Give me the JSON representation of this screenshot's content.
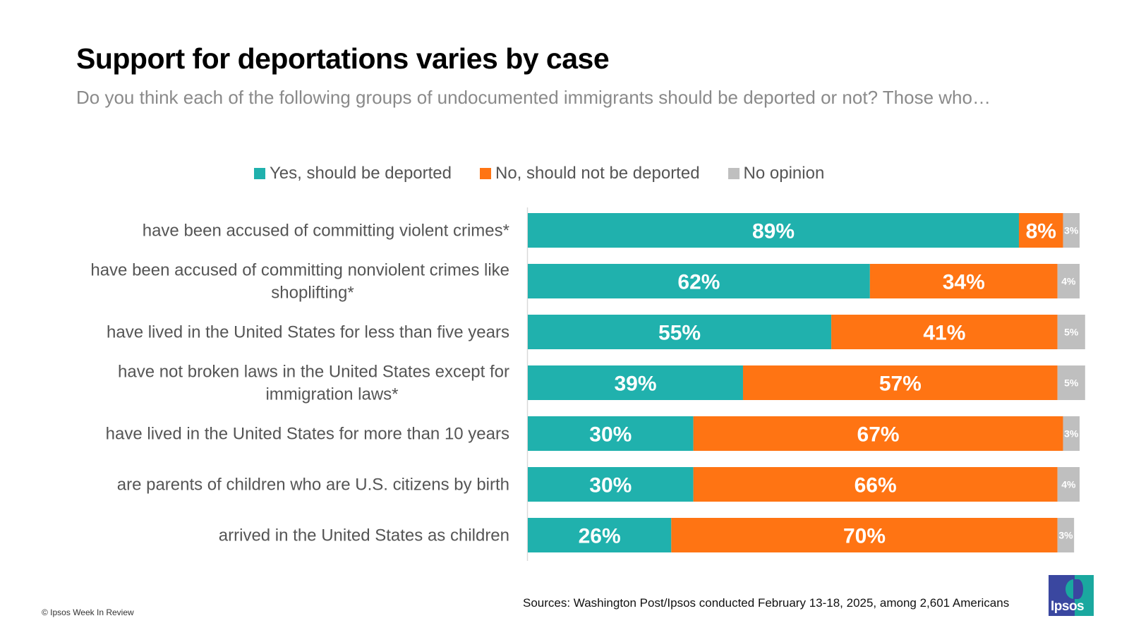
{
  "header": {
    "title": "Support for deportations varies by case",
    "subtitle": "Do you think each of the following groups of undocumented immigrants should be deported or not? Those who…"
  },
  "colors": {
    "yes": "#20b1ad",
    "no": "#ff7413",
    "no_opinion": "#bfbfbf",
    "axis": "#d9d9d9",
    "label_text": "#555555",
    "value_text": "#ffffff"
  },
  "chart_data": {
    "type": "bar",
    "orientation": "horizontal",
    "stacked": true,
    "title": "Support for deportations varies by case",
    "subtitle": "Do you think each of the following groups of undocumented immigrants should be deported or not? Those who…",
    "xlabel": "",
    "ylabel": "",
    "xlim": [
      0,
      100
    ],
    "unit": "%",
    "legend_position": "top-center",
    "grid": false,
    "categories": [
      "have been accused of committing violent crimes*",
      "have been accused of committing nonviolent crimes like shoplifting*",
      "have lived in the United States for less than five years",
      "have not broken laws in the United States except for immigration laws*",
      "have lived in the United States for more than 10 years",
      "are parents of children who are U.S. citizens by birth",
      "arrived in the United States as children"
    ],
    "series": [
      {
        "name": "Yes, should be deported",
        "key": "yes",
        "values": [
          89,
          62,
          55,
          39,
          30,
          30,
          26
        ]
      },
      {
        "name": "No, should not be deported",
        "key": "no",
        "values": [
          8,
          34,
          41,
          57,
          67,
          66,
          70
        ]
      },
      {
        "name": "No opinion",
        "key": "no_opinion",
        "values": [
          3,
          4,
          5,
          5,
          3,
          4,
          3
        ]
      }
    ]
  },
  "footer": {
    "sources": "Sources: Washington Post/Ipsos conducted February 13-18, 2025, among 2,601 Americans",
    "copyright": "© Ipsos Week In Review",
    "logo_text": "Ipsos"
  }
}
